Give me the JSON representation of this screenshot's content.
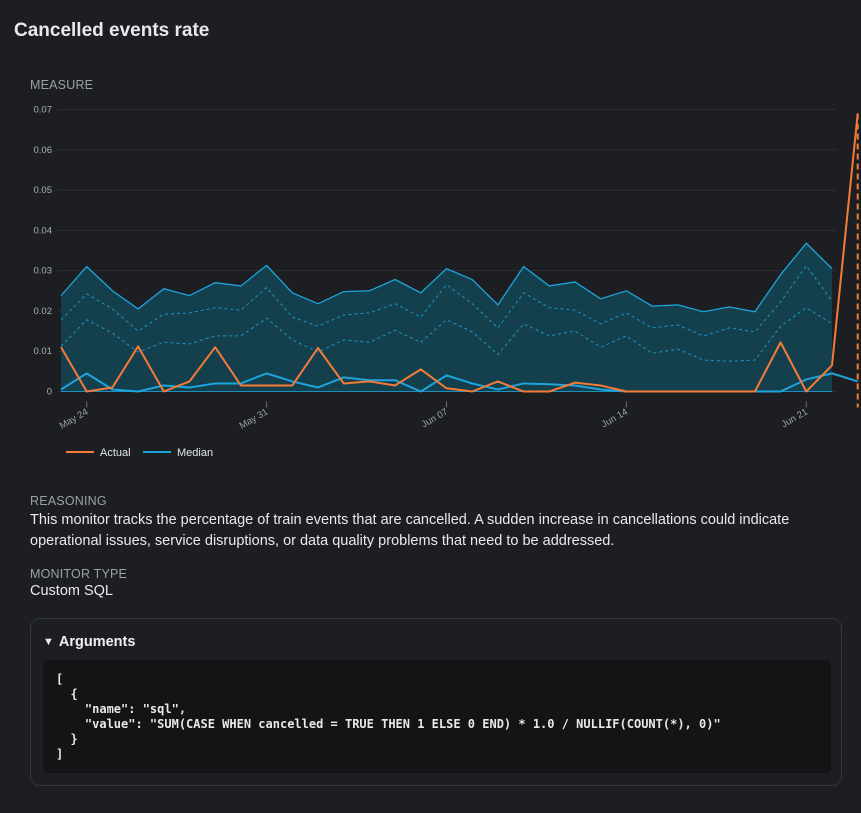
{
  "page": {
    "title": "Cancelled events rate"
  },
  "measure": {
    "label": "MEASURE"
  },
  "reasoning": {
    "label": "REASONING",
    "text": "This monitor tracks the percentage of train events that are cancelled. A sudden increase in cancellations could indicate operational issues, service disruptions, or data quality problems that need to be addressed."
  },
  "monitor_type": {
    "label": "MONITOR TYPE",
    "value": "Custom SQL"
  },
  "arguments": {
    "label": "Arguments",
    "code": "[\n  {\n    \"name\": \"sql\",\n    \"value\": \"SUM(CASE WHEN cancelled = TRUE THEN 1 ELSE 0 END) * 1.0 / NULLIF(COUNT(*), 0)\"\n  }\n]"
  },
  "colors": {
    "background": "#1c1e21",
    "actual": "#f47b38",
    "median": "#1ea4dc",
    "band_fill": "#14414f",
    "grid": "#2c3035"
  },
  "chart_data": {
    "type": "line",
    "ylim": [
      0,
      0.07
    ],
    "y_ticks": [
      "0",
      "0.01",
      "0.02",
      "0.03",
      "0.04",
      "0.05",
      "0.06",
      "0.07"
    ],
    "x_ticks": [
      {
        "label": "May 24",
        "index": 1
      },
      {
        "label": "May 31",
        "index": 8
      },
      {
        "label": "Jun 07",
        "index": 15
      },
      {
        "label": "Jun 14",
        "index": 22
      },
      {
        "label": "Jun 21",
        "index": 29
      }
    ],
    "legend": [
      "Actual",
      "Median"
    ],
    "legend_position": "bottom-left",
    "grid": true,
    "series": [
      {
        "name": "Actual",
        "values": [
          0.011,
          0.0,
          0.001,
          0.0112,
          0.0,
          0.0025,
          0.011,
          0.0015,
          0.0015,
          0.0015,
          0.0108,
          0.002,
          0.0025,
          0.0015,
          0.0055,
          0.0008,
          0.0,
          0.0025,
          0.0,
          0.0,
          0.0022,
          0.0015,
          0.0,
          0.0,
          0.0,
          0.0,
          0.0,
          0.0,
          0.0122,
          0.0,
          0.0065,
          0.069
        ]
      },
      {
        "name": "Median",
        "values": [
          0.0005,
          0.0045,
          0.0005,
          0.0,
          0.0015,
          0.001,
          0.002,
          0.002,
          0.0045,
          0.0025,
          0.001,
          0.0035,
          0.0028,
          0.0028,
          0.0,
          0.004,
          0.002,
          0.0005,
          0.002,
          0.0018,
          0.0015,
          0.0005,
          0.0,
          0.0,
          0.0,
          0.0,
          0.0,
          0.0,
          0.0,
          0.003,
          0.0045,
          0.0025
        ]
      },
      {
        "name": "upper",
        "values": [
          0.0238,
          0.031,
          0.025,
          0.0205,
          0.0255,
          0.0238,
          0.027,
          0.0262,
          0.0313,
          0.0245,
          0.0218,
          0.0248,
          0.025,
          0.0278,
          0.0245,
          0.0305,
          0.0278,
          0.0215,
          0.031,
          0.0262,
          0.0272,
          0.023,
          0.025,
          0.0212,
          0.0215,
          0.0198,
          0.021,
          0.0198,
          0.029,
          0.0368,
          0.0305
        ]
      },
      {
        "name": "inner_upper",
        "values": [
          0.0178,
          0.0242,
          0.0205,
          0.015,
          0.0192,
          0.0195,
          0.0208,
          0.0202,
          0.0258,
          0.0185,
          0.0162,
          0.019,
          0.0195,
          0.0218,
          0.0185,
          0.0265,
          0.0218,
          0.0158,
          0.0245,
          0.0208,
          0.0202,
          0.0168,
          0.0195,
          0.0158,
          0.0165,
          0.0138,
          0.0158,
          0.0148,
          0.0222,
          0.0312,
          0.0225
        ]
      },
      {
        "name": "inner_lower",
        "values": [
          0.0112,
          0.0178,
          0.0145,
          0.0098,
          0.0122,
          0.0118,
          0.0138,
          0.0138,
          0.0182,
          0.0128,
          0.0098,
          0.0128,
          0.0122,
          0.0152,
          0.0122,
          0.0178,
          0.0148,
          0.0092,
          0.0168,
          0.0138,
          0.015,
          0.011,
          0.0138,
          0.0095,
          0.0105,
          0.0078,
          0.0075,
          0.0078,
          0.0162,
          0.0208,
          0.0168
        ]
      }
    ]
  }
}
